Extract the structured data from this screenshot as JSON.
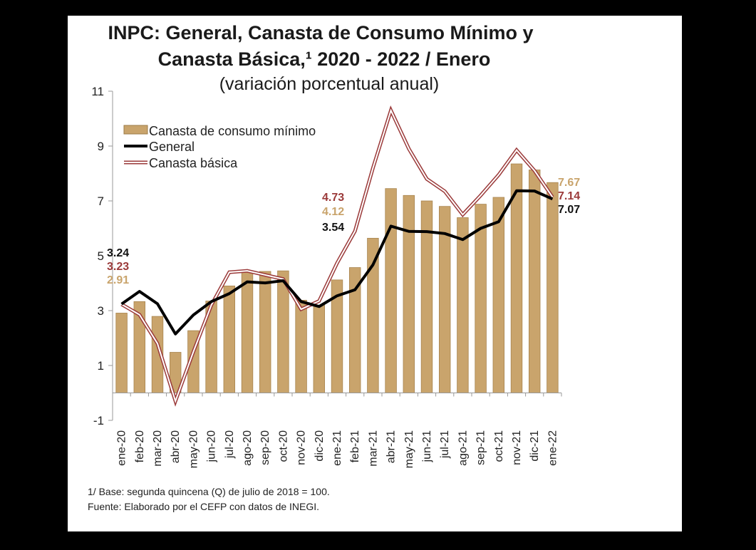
{
  "chart_data": {
    "type": "bar",
    "title_line1": "INPC: General, Canasta de Consumo Mínimo y",
    "title_line2": "Canasta Básica,¹ 2020 - 2022 / Enero",
    "subtitle": "(variación porcentual anual)",
    "categories": [
      "ene-20",
      "feb-20",
      "mar-20",
      "abr-20",
      "may-20",
      "jun-20",
      "jul-20",
      "ago-20",
      "sep-20",
      "oct-20",
      "nov-20",
      "dic-20",
      "ene-21",
      "feb-21",
      "mar-21",
      "abr-21",
      "may-21",
      "jun-21",
      "jul-21",
      "ago-21",
      "sep-21",
      "oct-21",
      "nov-21",
      "dic-21",
      "ene-22"
    ],
    "ylim": [
      -1,
      11
    ],
    "yticks": [
      -1,
      1,
      3,
      5,
      7,
      9,
      11
    ],
    "series": [
      {
        "name": "Canasta de consumo mínimo",
        "kind": "bar",
        "color": "#c9a46c",
        "values": [
          2.91,
          3.33,
          2.79,
          1.48,
          2.27,
          3.35,
          3.9,
          4.43,
          4.43,
          4.45,
          3.38,
          3.2,
          4.12,
          4.57,
          5.64,
          7.45,
          7.2,
          7.0,
          6.8,
          6.39,
          6.88,
          7.13,
          8.35,
          8.13,
          7.67
        ]
      },
      {
        "name": "General",
        "kind": "line",
        "color": "#000000",
        "values": [
          3.24,
          3.7,
          3.25,
          2.15,
          2.84,
          3.33,
          3.62,
          4.05,
          4.01,
          4.09,
          3.33,
          3.15,
          3.54,
          3.76,
          4.67,
          6.08,
          5.89,
          5.88,
          5.81,
          5.59,
          6.0,
          6.24,
          7.37,
          7.36,
          7.07
        ]
      },
      {
        "name": "Canasta básica",
        "kind": "line-outline",
        "color": "#9b3a3a",
        "values": [
          3.23,
          2.85,
          1.8,
          -0.3,
          1.5,
          3.2,
          4.4,
          4.45,
          4.3,
          4.15,
          3.05,
          3.35,
          4.73,
          5.9,
          8.2,
          10.3,
          8.9,
          7.8,
          7.35,
          6.5,
          7.2,
          7.95,
          8.85,
          8.1,
          7.14
        ]
      }
    ],
    "data_labels": {
      "start": {
        "general": "3.24",
        "basica": "3.23",
        "minimo": "2.91"
      },
      "mid": {
        "basica": "4.73",
        "minimo": "4.12",
        "general": "3.54"
      },
      "end": {
        "minimo": "7.67",
        "basica": "7.14",
        "general": "7.07"
      }
    },
    "legend_position": "top-left",
    "grid": false
  },
  "notes": {
    "base": "1/ Base: segunda quincena (Q) de julio de 2018 = 100.",
    "source": "Fuente: Elaborado por el CEFP con datos de INEGI."
  }
}
